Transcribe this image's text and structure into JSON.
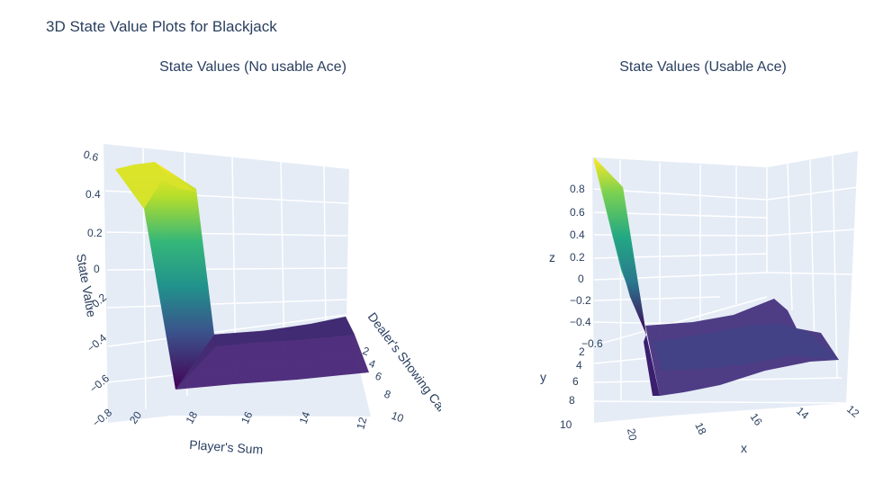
{
  "figure_title": "3D State Value Plots for Blackjack",
  "colors": {
    "pane": "#e5ecf6",
    "grid": "#ffffff",
    "text": "#2a3f5f",
    "colorscale": [
      "#440154",
      "#482878",
      "#3e4989",
      "#31688e",
      "#26828e",
      "#1f9e89",
      "#35b779",
      "#6ece58",
      "#b5de2b",
      "#fde725"
    ]
  },
  "chart_data": [
    {
      "type": "surface",
      "title": "State Values (No usable Ace)",
      "xlabel": "Player's Sum",
      "ylabel": "Dealer's Showing Card",
      "zlabel": "State Value",
      "x_ticks": [
        "20",
        "18",
        "16",
        "14",
        "12"
      ],
      "y_ticks": [
        "2",
        "4",
        "6",
        "8",
        "10"
      ],
      "z_ticks": [
        "0.6",
        "0.4",
        "0.2",
        "0",
        "−0.2",
        "−0.4",
        "−0.6",
        "−0.8"
      ],
      "series": [
        {
          "player_sum": 21,
          "dealer_card": 1,
          "value": 0.48
        },
        {
          "player_sum": 21,
          "dealer_card": 3,
          "value": 0.55
        },
        {
          "player_sum": 20,
          "dealer_card": 1,
          "value": 0.45
        },
        {
          "player_sum": 20,
          "dealer_card": 3,
          "value": 0.5
        },
        {
          "player_sum": 19,
          "dealer_card": 1,
          "value": -0.6
        },
        {
          "player_sum": 12,
          "dealer_card": 1,
          "value": -0.45
        },
        {
          "player_sum": 12,
          "dealer_card": 10,
          "value": -0.25
        }
      ]
    },
    {
      "type": "surface",
      "title": "State Values (Usable Ace)",
      "xlabel": "x",
      "ylabel": "y",
      "zlabel": "z",
      "x_ticks": [
        "20",
        "18",
        "16",
        "14",
        "12"
      ],
      "y_ticks": [
        "2",
        "4",
        "6",
        "8",
        "10"
      ],
      "z_ticks": [
        "0.8",
        "0.6",
        "0.4",
        "0.2",
        "0",
        "−0.2",
        "−0.4",
        "−0.6"
      ],
      "series": [
        {
          "player_sum": 21,
          "dealer_card": 1,
          "value": 0.9
        },
        {
          "player_sum": 21,
          "dealer_card": 5,
          "value": 0.8
        },
        {
          "player_sum": 20,
          "dealer_card": 1,
          "value": -0.55
        },
        {
          "player_sum": 20,
          "dealer_card": 10,
          "value": -0.7
        },
        {
          "player_sum": 14,
          "dealer_card": 1,
          "value": -0.2
        },
        {
          "player_sum": 12,
          "dealer_card": 10,
          "value": -0.3
        }
      ]
    }
  ]
}
